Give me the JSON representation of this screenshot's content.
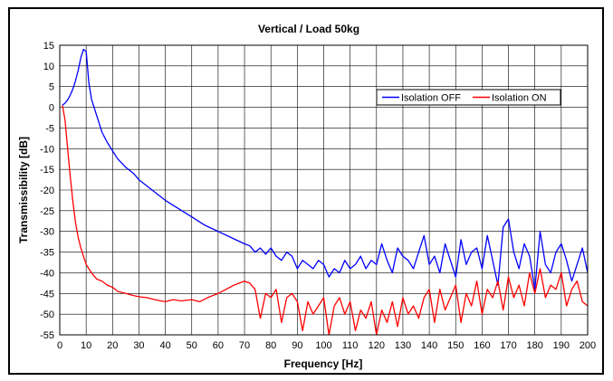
{
  "chart_data": {
    "type": "line",
    "title": "Vertical / Load 50kg",
    "xlabel": "Frequency [Hz]",
    "ylabel": "Transmissibility [dB]",
    "xlim": [
      0,
      200
    ],
    "ylim": [
      -55,
      15
    ],
    "xticks": [
      0,
      10,
      20,
      30,
      40,
      50,
      60,
      70,
      80,
      90,
      100,
      110,
      120,
      130,
      140,
      150,
      160,
      170,
      180,
      190,
      200
    ],
    "yticks": [
      15,
      10,
      5,
      0,
      -5,
      -10,
      -15,
      -20,
      -25,
      -30,
      -35,
      -40,
      -45,
      -50,
      -55
    ],
    "grid": true,
    "legend_position": "top-right",
    "series": [
      {
        "name": "Isolation OFF",
        "color": "#0000ff",
        "x": [
          1,
          2,
          3,
          4,
          5,
          6,
          7,
          8,
          9,
          10,
          11,
          12,
          14,
          16,
          18,
          20,
          22,
          25,
          28,
          30,
          35,
          40,
          45,
          50,
          55,
          60,
          65,
          70,
          72,
          74,
          76,
          78,
          80,
          82,
          84,
          86,
          88,
          90,
          92,
          94,
          96,
          98,
          100,
          102,
          104,
          106,
          108,
          110,
          112,
          114,
          116,
          118,
          120,
          122,
          124,
          126,
          128,
          130,
          132,
          134,
          136,
          138,
          140,
          142,
          144,
          146,
          148,
          150,
          152,
          154,
          156,
          158,
          160,
          162,
          164,
          166,
          168,
          170,
          172,
          174,
          176,
          178,
          180,
          182,
          184,
          186,
          188,
          190,
          192,
          194,
          196,
          198,
          200
        ],
        "values": [
          0.5,
          1,
          1.8,
          3,
          4.5,
          6.5,
          9,
          12,
          14,
          13.5,
          6,
          2,
          -2,
          -6,
          -8.5,
          -10.5,
          -12.5,
          -14.5,
          -16,
          -17.5,
          -20,
          -22.5,
          -24.5,
          -26.5,
          -28.5,
          -30,
          -31.5,
          -33,
          -33.5,
          -35,
          -34,
          -35.5,
          -34,
          -36,
          -37,
          -35,
          -36,
          -39,
          -37,
          -38,
          -39,
          -37,
          -38,
          -41,
          -39,
          -40,
          -37,
          -39,
          -38,
          -36,
          -39,
          -37,
          -38,
          -33,
          -37,
          -40,
          -34,
          -36,
          -37,
          -39,
          -35,
          -31,
          -38,
          -36,
          -40,
          -33,
          -37,
          -41,
          -32,
          -38,
          -35,
          -34,
          -39,
          -31,
          -37,
          -43,
          -29,
          -27,
          -35,
          -39,
          -33,
          -36,
          -44,
          -30,
          -38,
          -40,
          -35,
          -33,
          -37,
          -42,
          -38,
          -34,
          -40
        ]
      },
      {
        "name": "Isolation ON",
        "color": "#ff0000",
        "x": [
          1,
          2,
          3,
          4,
          5,
          6,
          7,
          8,
          9,
          10,
          12,
          14,
          16,
          18,
          20,
          22,
          25,
          28,
          30,
          33,
          36,
          40,
          43,
          46,
          50,
          53,
          56,
          60,
          63,
          66,
          70,
          72,
          74,
          76,
          78,
          80,
          82,
          84,
          86,
          88,
          90,
          92,
          94,
          96,
          98,
          100,
          102,
          104,
          106,
          108,
          110,
          112,
          114,
          116,
          118,
          120,
          122,
          124,
          126,
          128,
          130,
          132,
          134,
          136,
          138,
          140,
          142,
          144,
          146,
          148,
          150,
          152,
          154,
          156,
          158,
          160,
          162,
          164,
          166,
          168,
          170,
          172,
          174,
          176,
          178,
          180,
          182,
          184,
          186,
          188,
          190,
          192,
          194,
          196,
          198,
          200
        ],
        "values": [
          0.5,
          -3,
          -10,
          -17,
          -23,
          -28,
          -31.5,
          -34,
          -36,
          -38,
          -40,
          -41.5,
          -42,
          -43,
          -43.5,
          -44.5,
          -45,
          -45.5,
          -45.8,
          -46,
          -46.5,
          -47,
          -46.5,
          -46.8,
          -46.5,
          -47,
          -46,
          -45,
          -44,
          -43,
          -42,
          -42.5,
          -44,
          -51,
          -45,
          -46,
          -44,
          -52,
          -46,
          -45,
          -47,
          -54,
          -47,
          -50,
          -48,
          -46,
          -55,
          -48,
          -46,
          -50,
          -47,
          -54,
          -49,
          -51,
          -47,
          -55,
          -49,
          -52,
          -47,
          -53,
          -46,
          -50,
          -48,
          -51,
          -46,
          -44,
          -52,
          -44,
          -49,
          -46,
          -43,
          -52,
          -45,
          -48,
          -42,
          -50,
          -44,
          -46,
          -42,
          -49,
          -41,
          -46,
          -43,
          -48,
          -40,
          -45,
          -39,
          -46,
          -43,
          -44,
          -40,
          -48,
          -44,
          -42,
          -47,
          -48
        ]
      }
    ]
  }
}
